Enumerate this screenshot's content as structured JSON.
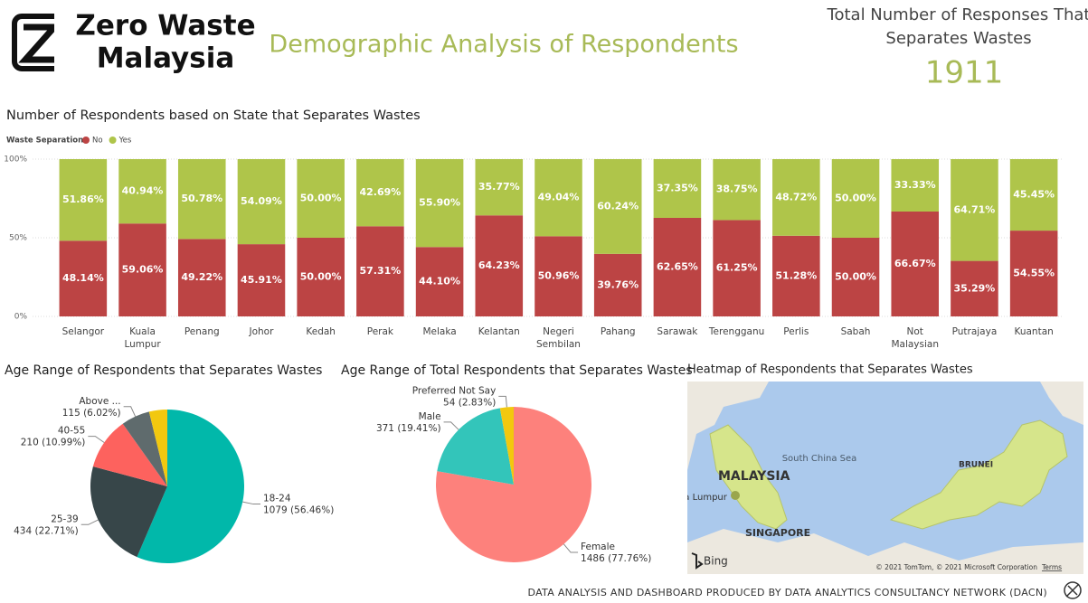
{
  "header": {
    "logo_line1": "Zero Waste",
    "logo_line2": "Malaysia",
    "title": "Demographic Analysis of Respondents"
  },
  "kpi": {
    "label_line1": "Total Number of Responses That",
    "label_line2": "Separates Wastes",
    "value": 1911
  },
  "chart_data": [
    {
      "type": "bar",
      "stacked": true,
      "title": "Number of Respondents based on State that Separates Wastes",
      "legend_title": "Waste Separation",
      "categories": [
        "Selangor",
        "Kuala Lumpur",
        "Penang",
        "Johor",
        "Kedah",
        "Perak",
        "Melaka",
        "Kelantan",
        "Negeri Sembilan",
        "Pahang",
        "Sarawak",
        "Terengganu",
        "Perlis",
        "Sabah",
        "Not Malaysian",
        "Putrajaya",
        "Kuantan"
      ],
      "series": [
        {
          "name": "No",
          "color": "#bc4444",
          "values": [
            48.14,
            59.06,
            49.22,
            45.91,
            50.0,
            57.31,
            44.1,
            64.23,
            50.96,
            39.76,
            62.65,
            61.25,
            51.28,
            50.0,
            66.67,
            35.29,
            54.55
          ],
          "value_labels": [
            "48.14%",
            "59.06%",
            "49.22%",
            "45.91%",
            "50.00%",
            "57.31%",
            "44.10%",
            "64.23%",
            "50.96%",
            "39.76%",
            "62.65%",
            "61.25%",
            "51.28%",
            "50.00%",
            "66.67%",
            "35.29%",
            "54.55%"
          ]
        },
        {
          "name": "Yes",
          "color": "#afc54a",
          "values": [
            51.86,
            40.94,
            50.78,
            54.09,
            50.0,
            42.69,
            55.9,
            35.77,
            49.04,
            60.24,
            37.35,
            38.75,
            48.72,
            50.0,
            33.33,
            64.71,
            45.45
          ],
          "value_labels": [
            "51.86%",
            "40.94%",
            "50.78%",
            "54.09%",
            "50.00%",
            "42.69%",
            "55.90%",
            "35.77%",
            "49.04%",
            "60.24%",
            "37.35%",
            "38.75%",
            "48.72%",
            "50.00%",
            "33.33%",
            "64.71%",
            "45.45%"
          ]
        }
      ],
      "ylim": [
        0,
        100
      ],
      "yticks": [
        {
          "value": 0,
          "label": "0%"
        },
        {
          "value": 50,
          "label": "50%"
        },
        {
          "value": 100,
          "label": "100%"
        }
      ],
      "grid": true
    },
    {
      "type": "pie",
      "title": "Age Range of Respondents that Separates Wastes",
      "categories": [
        "18-24",
        "25-39",
        "40-55",
        "Above ...",
        null
      ],
      "values": [
        1079,
        434,
        210,
        115,
        73
      ],
      "value_labels": [
        "1079 (56.46%)",
        "434 (22.71%)",
        "210 (10.99%)",
        "115 (6.02%)",
        null
      ],
      "colors": [
        "#01b8aa",
        "#374649",
        "#fd625e",
        "#5f6b6d",
        "#f2c80f"
      ]
    },
    {
      "type": "pie",
      "title": "Age Range of Total Respondents that Separates Wastes",
      "categories": [
        "Female",
        "Male",
        "Preferred Not Say"
      ],
      "values": [
        1486,
        371,
        54
      ],
      "value_labels": [
        "1486 (77.76%)",
        "371 (19.41%)",
        "54 (2.83%)"
      ],
      "colors": [
        "#fd817c",
        "#33c5ba",
        "#f2c80f"
      ]
    }
  ],
  "map": {
    "title": "Heatmap of Respondents that Separates Wastes",
    "sea_label": "South China Sea",
    "country_label": "MALAYSIA",
    "singapore_label": "SINGAPORE",
    "brunei_label": "BRUNEI",
    "city_label": "Kuala Lumpur",
    "brand": "Bing",
    "copyright": "© 2021 TomTom, © 2021 Microsoft Corporation",
    "terms": "Terms"
  },
  "footer": {
    "text": "DATA ANALYSIS AND DASHBOARD PRODUCED BY DATA ANALYTICS CONSULTANCY NETWORK (DACN)"
  }
}
